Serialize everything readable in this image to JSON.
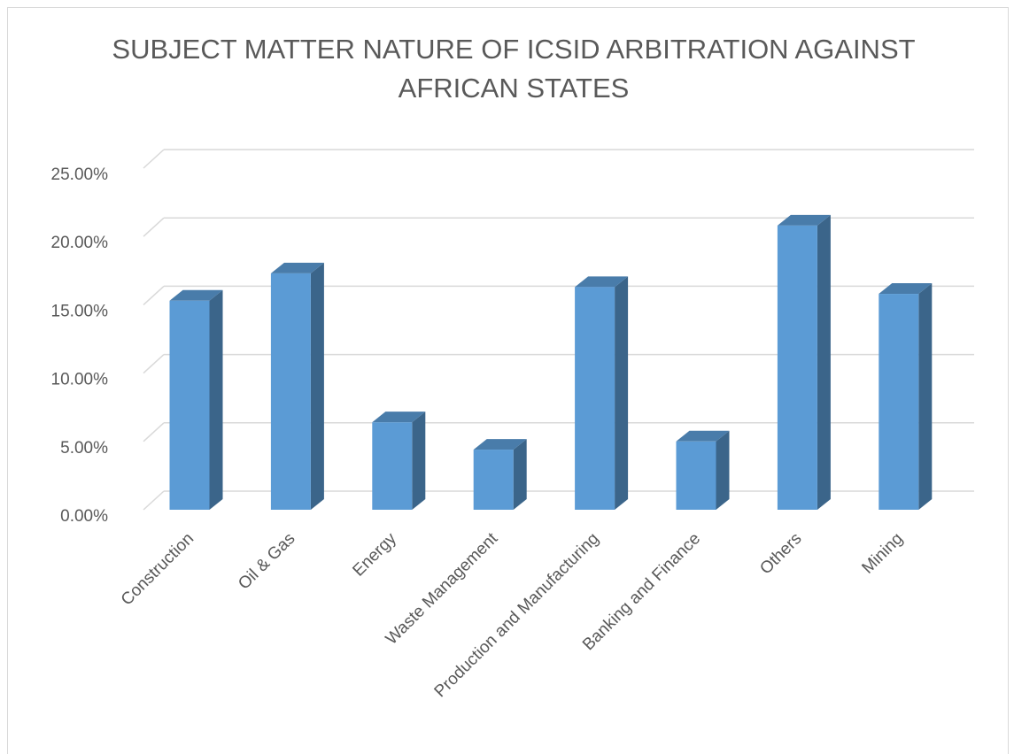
{
  "chart_data": {
    "type": "bar3d",
    "title": "SUBJECT MATTER NATURE OF ICSID ARBITRATION AGAINST AFRICAN STATES",
    "categories": [
      "Construction",
      "Oil & Gas",
      "Energy",
      "Waste Management",
      "Production and Manufacturing",
      "Banking and Finance",
      "Others",
      "Mining"
    ],
    "values": [
      15.3,
      17.3,
      6.4,
      4.4,
      16.3,
      5.0,
      20.8,
      15.8
    ],
    "color": "#5b9bd5",
    "ylim": [
      0,
      25
    ],
    "yticks": [
      {
        "value": 0,
        "label": "0.00%"
      },
      {
        "value": 5,
        "label": "5.00%"
      },
      {
        "value": 10,
        "label": "10.00%"
      },
      {
        "value": 15,
        "label": "15.00%"
      },
      {
        "value": 20,
        "label": "20.00%"
      },
      {
        "value": 25,
        "label": "25.00%"
      }
    ],
    "grid": true
  }
}
